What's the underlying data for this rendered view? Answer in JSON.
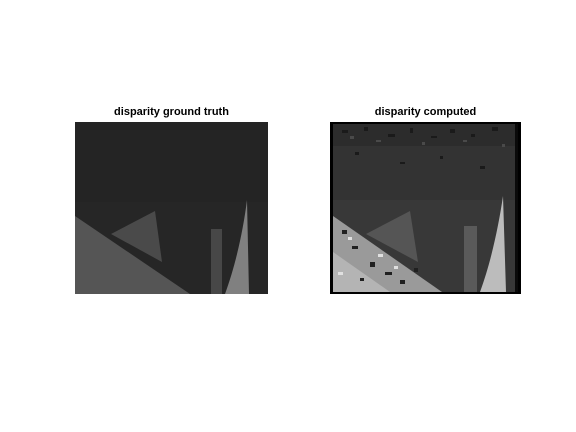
{
  "figure": {
    "panels": [
      {
        "title": "disparity ground truth"
      },
      {
        "title": "disparity computed"
      }
    ]
  }
}
